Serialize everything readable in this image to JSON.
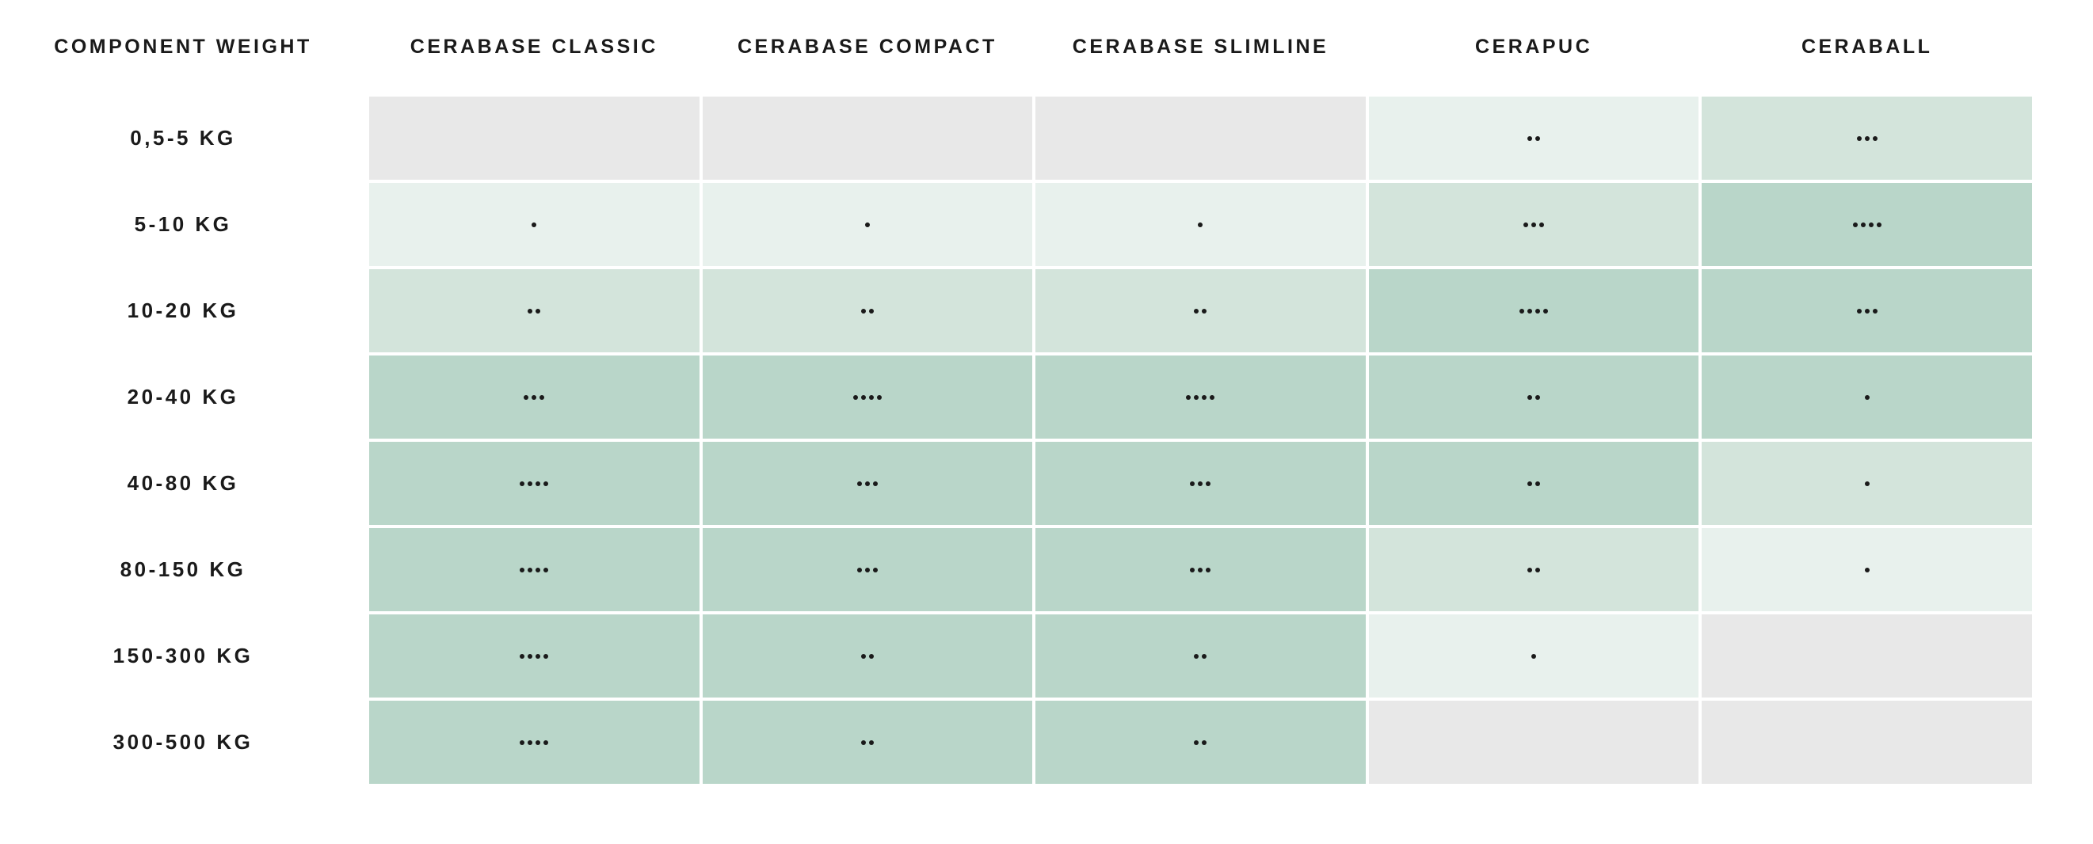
{
  "table": {
    "corner_header": "COMPONENT WEIGHT",
    "columns": [
      "CERABASE CLASSIC",
      "CERABASE COMPACT",
      "CERABASE SLIMLINE",
      "CERAPUC",
      "CERABALL"
    ],
    "rows": [
      {
        "label": "0,5-5 KG",
        "cells": [
          {
            "dots": 0,
            "level": "none"
          },
          {
            "dots": 0,
            "level": "none"
          },
          {
            "dots": 0,
            "level": "none"
          },
          {
            "dots": 2,
            "level": "l1"
          },
          {
            "dots": 3,
            "level": "l2"
          }
        ]
      },
      {
        "label": "5-10 KG",
        "cells": [
          {
            "dots": 1,
            "level": "l1"
          },
          {
            "dots": 1,
            "level": "l1"
          },
          {
            "dots": 1,
            "level": "l1"
          },
          {
            "dots": 3,
            "level": "l2"
          },
          {
            "dots": 4,
            "level": "l3"
          }
        ]
      },
      {
        "label": "10-20 KG",
        "cells": [
          {
            "dots": 2,
            "level": "l2"
          },
          {
            "dots": 2,
            "level": "l2"
          },
          {
            "dots": 2,
            "level": "l2"
          },
          {
            "dots": 4,
            "level": "l3"
          },
          {
            "dots": 3,
            "level": "l3"
          }
        ]
      },
      {
        "label": "20-40 KG",
        "cells": [
          {
            "dots": 3,
            "level": "l3"
          },
          {
            "dots": 4,
            "level": "l3"
          },
          {
            "dots": 4,
            "level": "l3"
          },
          {
            "dots": 2,
            "level": "l3"
          },
          {
            "dots": 1,
            "level": "l3"
          }
        ]
      },
      {
        "label": "40-80 KG",
        "cells": [
          {
            "dots": 4,
            "level": "l3"
          },
          {
            "dots": 3,
            "level": "l3"
          },
          {
            "dots": 3,
            "level": "l3"
          },
          {
            "dots": 2,
            "level": "l3"
          },
          {
            "dots": 1,
            "level": "l2"
          }
        ]
      },
      {
        "label": "80-150 KG",
        "cells": [
          {
            "dots": 4,
            "level": "l3"
          },
          {
            "dots": 3,
            "level": "l3"
          },
          {
            "dots": 3,
            "level": "l3"
          },
          {
            "dots": 2,
            "level": "l2"
          },
          {
            "dots": 1,
            "level": "l1"
          }
        ]
      },
      {
        "label": "150-300 KG",
        "cells": [
          {
            "dots": 4,
            "level": "l3"
          },
          {
            "dots": 2,
            "level": "l3"
          },
          {
            "dots": 2,
            "level": "l3"
          },
          {
            "dots": 1,
            "level": "l1"
          },
          {
            "dots": 0,
            "level": "none"
          }
        ]
      },
      {
        "label": "300-500 KG",
        "cells": [
          {
            "dots": 4,
            "level": "l3"
          },
          {
            "dots": 2,
            "level": "l3"
          },
          {
            "dots": 2,
            "level": "l3"
          },
          {
            "dots": 0,
            "level": "none"
          },
          {
            "dots": 0,
            "level": "none"
          }
        ]
      }
    ]
  },
  "colors": {
    "none": "#e8e8e8",
    "l1": "#e8f1ed",
    "l2": "#d3e4db",
    "l3": "#b9d6c9",
    "dot": "#1a1a1a",
    "text": "#1a1a1a",
    "background": "#ffffff"
  },
  "chart_data": {
    "type": "heatmap",
    "title": "",
    "xlabel": "",
    "ylabel": "COMPONENT WEIGHT",
    "rows": [
      "0,5-5 KG",
      "5-10 KG",
      "10-20 KG",
      "20-40 KG",
      "40-80 KG",
      "80-150 KG",
      "150-300 KG",
      "300-500 KG"
    ],
    "columns": [
      "CERABASE CLASSIC",
      "CERABASE COMPACT",
      "CERABASE SLIMLINE",
      "CERAPUC",
      "CERABALL"
    ],
    "dot_counts": [
      [
        0,
        0,
        0,
        2,
        3
      ],
      [
        1,
        1,
        1,
        3,
        4
      ],
      [
        2,
        2,
        2,
        4,
        3
      ],
      [
        3,
        4,
        4,
        2,
        1
      ],
      [
        4,
        3,
        3,
        2,
        1
      ],
      [
        4,
        3,
        3,
        2,
        1
      ],
      [
        4,
        2,
        2,
        1,
        0
      ],
      [
        4,
        2,
        2,
        0,
        0
      ]
    ],
    "shade_levels": [
      [
        "none",
        "none",
        "none",
        "l1",
        "l2"
      ],
      [
        "l1",
        "l1",
        "l1",
        "l2",
        "l3"
      ],
      [
        "l2",
        "l2",
        "l2",
        "l3",
        "l3"
      ],
      [
        "l3",
        "l3",
        "l3",
        "l3",
        "l3"
      ],
      [
        "l3",
        "l3",
        "l3",
        "l3",
        "l2"
      ],
      [
        "l3",
        "l3",
        "l3",
        "l2",
        "l1"
      ],
      [
        "l3",
        "l3",
        "l3",
        "l1",
        "none"
      ],
      [
        "l3",
        "l3",
        "l3",
        "none",
        "none"
      ]
    ],
    "value_range": [
      0,
      4
    ],
    "grid": false,
    "legend_position": "none"
  }
}
